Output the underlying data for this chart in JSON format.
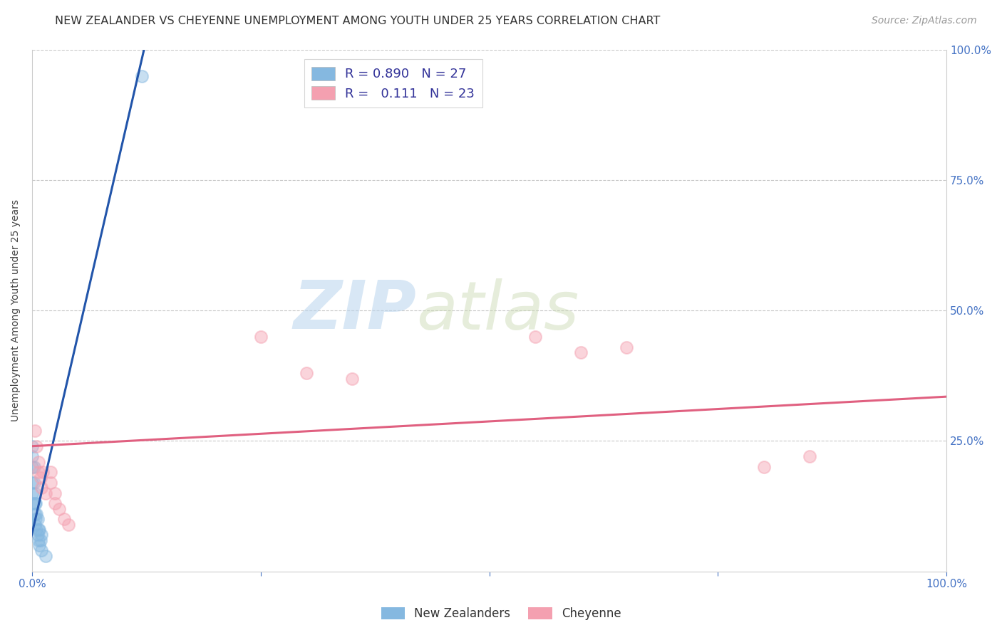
{
  "title": "NEW ZEALANDER VS CHEYENNE UNEMPLOYMENT AMONG YOUTH UNDER 25 YEARS CORRELATION CHART",
  "source": "Source: ZipAtlas.com",
  "ylabel": "Unemployment Among Youth under 25 years",
  "xlim": [
    0.0,
    1.0
  ],
  "ylim": [
    0.0,
    1.0
  ],
  "watermark_zip": "ZIP",
  "watermark_atlas": "atlas",
  "nz_scatter_x": [
    0.0,
    0.0,
    0.0,
    0.0,
    0.0,
    0.0,
    0.002,
    0.002,
    0.003,
    0.003,
    0.003,
    0.003,
    0.004,
    0.004,
    0.005,
    0.005,
    0.006,
    0.006,
    0.007,
    0.007,
    0.008,
    0.008,
    0.009,
    0.01,
    0.01,
    0.015,
    0.12
  ],
  "nz_scatter_y": [
    0.24,
    0.22,
    0.2,
    0.17,
    0.15,
    0.13,
    0.2,
    0.17,
    0.15,
    0.13,
    0.11,
    0.09,
    0.13,
    0.1,
    0.11,
    0.08,
    0.1,
    0.07,
    0.08,
    0.06,
    0.08,
    0.05,
    0.06,
    0.07,
    0.04,
    0.03,
    0.95
  ],
  "cheyenne_scatter_x": [
    0.003,
    0.005,
    0.007,
    0.007,
    0.009,
    0.01,
    0.012,
    0.015,
    0.02,
    0.02,
    0.025,
    0.025,
    0.03,
    0.035,
    0.04,
    0.25,
    0.3,
    0.35,
    0.55,
    0.6,
    0.65,
    0.8,
    0.85
  ],
  "cheyenne_scatter_y": [
    0.27,
    0.24,
    0.21,
    0.19,
    0.18,
    0.16,
    0.19,
    0.15,
    0.19,
    0.17,
    0.15,
    0.13,
    0.12,
    0.1,
    0.09,
    0.45,
    0.38,
    0.37,
    0.45,
    0.42,
    0.43,
    0.2,
    0.22
  ],
  "nz_color": "#85b8e0",
  "cheyenne_color": "#f4a0b0",
  "nz_line_color": "#2255aa",
  "cheyenne_line_color": "#e06080",
  "background_color": "#ffffff",
  "grid_color": "#c8c8c8",
  "title_fontsize": 11.5,
  "source_fontsize": 10,
  "axis_label_fontsize": 10,
  "tick_fontsize": 11,
  "scatter_size": 150,
  "scatter_alpha": 0.45,
  "line_width": 2.2,
  "nz_line_x": [
    -0.005,
    0.125
  ],
  "nz_line_y": [
    0.035,
    1.02
  ],
  "chey_line_x": [
    0.0,
    1.0
  ],
  "chey_line_y": [
    0.24,
    0.335
  ]
}
